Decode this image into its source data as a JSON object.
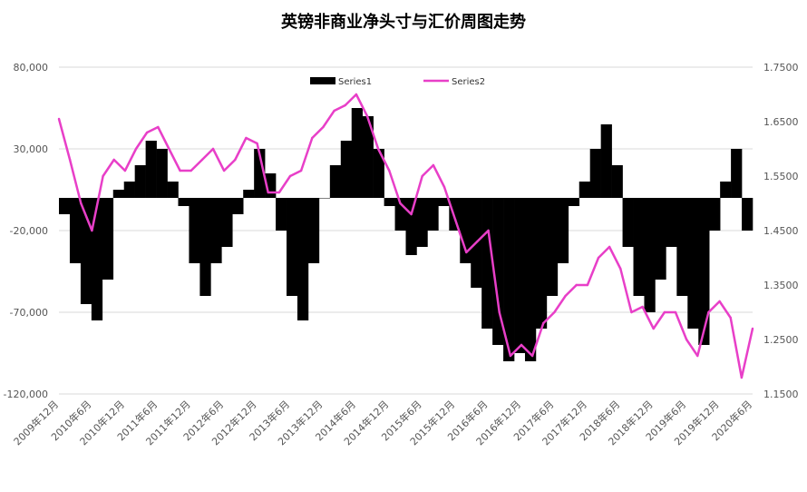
{
  "chart_data": {
    "type": "bar+line",
    "title": "英镑非商业净头寸与汇价周图走势",
    "xlabel": "",
    "ylabel": "",
    "y_left_ticks": [
      80000,
      30000,
      -20000,
      -70000,
      -120000
    ],
    "y_left_tick_labels": [
      "80,000",
      "30,000",
      "-20,000",
      "-70,000",
      "-120,000"
    ],
    "y_left_lim": [
      -120000,
      80000
    ],
    "y_right_ticks": [
      1.75,
      1.65,
      1.55,
      1.45,
      1.35,
      1.25,
      1.15
    ],
    "y_right_tick_labels": [
      "1.7500",
      "1.6500",
      "1.5500",
      "1.4500",
      "1.3500",
      "1.2500",
      "1.1500"
    ],
    "y_right_lim": [
      1.15,
      1.75
    ],
    "grid": "horizontal",
    "legend_position": "top-center",
    "colors": {
      "series1": "#000000",
      "series2": "#e83fc8",
      "grid": "#d9d9d9",
      "axis_text": "#555555"
    },
    "x_tick_labels": [
      "2009年12月",
      "2010年6月",
      "2010年12月",
      "2011年6月",
      "2011年12月",
      "2012年6月",
      "2012年12月",
      "2013年6月",
      "2013年12月",
      "2014年6月",
      "2014年12月",
      "2015年6月",
      "2015年12月",
      "2016年6月",
      "2016年12月",
      "2017年6月",
      "2017年12月",
      "2018年6月",
      "2018年12月",
      "2019年6月",
      "2019年12月",
      "2020年6月"
    ],
    "series": [
      {
        "name": "Series1",
        "type": "bar",
        "axis": "left",
        "x": [
          "2009-12",
          "2010-02",
          "2010-04",
          "2010-06",
          "2010-08",
          "2010-10",
          "2010-12",
          "2011-02",
          "2011-04",
          "2011-06",
          "2011-08",
          "2011-10",
          "2011-12",
          "2012-02",
          "2012-04",
          "2012-06",
          "2012-08",
          "2012-10",
          "2012-12",
          "2013-02",
          "2013-04",
          "2013-06",
          "2013-08",
          "2013-10",
          "2013-12",
          "2014-02",
          "2014-04",
          "2014-06",
          "2014-08",
          "2014-10",
          "2014-12",
          "2015-02",
          "2015-04",
          "2015-06",
          "2015-08",
          "2015-10",
          "2015-12",
          "2016-02",
          "2016-04",
          "2016-06",
          "2016-08",
          "2016-10",
          "2016-12",
          "2017-02",
          "2017-04",
          "2017-06",
          "2017-08",
          "2017-10",
          "2017-12",
          "2018-02",
          "2018-04",
          "2018-06",
          "2018-08",
          "2018-10",
          "2018-12",
          "2019-02",
          "2019-04",
          "2019-06",
          "2019-08",
          "2019-10",
          "2019-12",
          "2020-02",
          "2020-04",
          "2020-06"
        ],
        "values": [
          -10000,
          -40000,
          -65000,
          -75000,
          -50000,
          5000,
          10000,
          20000,
          35000,
          30000,
          10000,
          -5000,
          -40000,
          -60000,
          -40000,
          -30000,
          -10000,
          5000,
          30000,
          15000,
          -20000,
          -60000,
          -75000,
          -40000,
          0,
          20000,
          35000,
          55000,
          50000,
          30000,
          -5000,
          -20000,
          -35000,
          -30000,
          -20000,
          -5000,
          -20000,
          -40000,
          -55000,
          -80000,
          -90000,
          -100000,
          -95000,
          -100000,
          -80000,
          -60000,
          -40000,
          -5000,
          10000,
          30000,
          45000,
          20000,
          -30000,
          -60000,
          -70000,
          -50000,
          -30000,
          -60000,
          -80000,
          -90000,
          -20000,
          10000,
          30000,
          -20000
        ]
      },
      {
        "name": "Series2",
        "type": "line",
        "axis": "right",
        "x": [
          "2009-12",
          "2010-02",
          "2010-04",
          "2010-06",
          "2010-08",
          "2010-10",
          "2010-12",
          "2011-02",
          "2011-04",
          "2011-06",
          "2011-08",
          "2011-10",
          "2011-12",
          "2012-02",
          "2012-04",
          "2012-06",
          "2012-08",
          "2012-10",
          "2012-12",
          "2013-02",
          "2013-04",
          "2013-06",
          "2013-08",
          "2013-10",
          "2013-12",
          "2014-02",
          "2014-04",
          "2014-06",
          "2014-08",
          "2014-10",
          "2014-12",
          "2015-02",
          "2015-04",
          "2015-06",
          "2015-08",
          "2015-10",
          "2015-12",
          "2016-02",
          "2016-04",
          "2016-06",
          "2016-08",
          "2016-10",
          "2016-12",
          "2017-02",
          "2017-04",
          "2017-06",
          "2017-08",
          "2017-10",
          "2017-12",
          "2018-02",
          "2018-04",
          "2018-06",
          "2018-08",
          "2018-10",
          "2018-12",
          "2019-02",
          "2019-04",
          "2019-06",
          "2019-08",
          "2019-10",
          "2019-12",
          "2020-02",
          "2020-04",
          "2020-06"
        ],
        "values": [
          1.655,
          1.58,
          1.5,
          1.45,
          1.55,
          1.58,
          1.56,
          1.6,
          1.63,
          1.64,
          1.6,
          1.56,
          1.56,
          1.58,
          1.6,
          1.56,
          1.58,
          1.62,
          1.61,
          1.52,
          1.52,
          1.55,
          1.56,
          1.62,
          1.64,
          1.67,
          1.68,
          1.7,
          1.66,
          1.6,
          1.56,
          1.5,
          1.48,
          1.55,
          1.57,
          1.53,
          1.47,
          1.41,
          1.43,
          1.45,
          1.3,
          1.22,
          1.24,
          1.22,
          1.28,
          1.3,
          1.33,
          1.35,
          1.35,
          1.4,
          1.42,
          1.38,
          1.3,
          1.31,
          1.27,
          1.3,
          1.3,
          1.25,
          1.22,
          1.3,
          1.32,
          1.29,
          1.18,
          1.27
        ]
      }
    ]
  }
}
